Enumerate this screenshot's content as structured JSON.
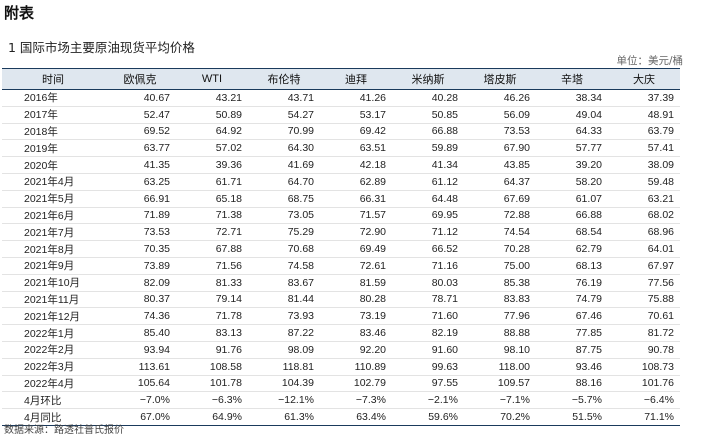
{
  "section_title": "附表",
  "table_title": "1  国际市场主要原油现货平均价格",
  "unit": "单位：美元/桶",
  "columns": [
    "时间",
    "欧佩克",
    "WTI",
    "布伦特",
    "迪拜",
    "米纳斯",
    "塔皮斯",
    "辛塔",
    "大庆"
  ],
  "rows": [
    [
      "2016年",
      "40.67",
      "43.21",
      "43.71",
      "41.26",
      "40.28",
      "46.26",
      "38.34",
      "37.39"
    ],
    [
      "2017年",
      "52.47",
      "50.89",
      "54.27",
      "53.17",
      "50.85",
      "56.09",
      "49.04",
      "48.91"
    ],
    [
      "2018年",
      "69.52",
      "64.92",
      "70.99",
      "69.42",
      "66.88",
      "73.53",
      "64.33",
      "63.79"
    ],
    [
      "2019年",
      "63.77",
      "57.02",
      "64.30",
      "63.51",
      "59.89",
      "67.90",
      "57.77",
      "57.41"
    ],
    [
      "2020年",
      "41.35",
      "39.36",
      "41.69",
      "42.18",
      "41.34",
      "43.85",
      "39.20",
      "38.09"
    ],
    [
      "2021年4月",
      "63.25",
      "61.71",
      "64.70",
      "62.89",
      "61.12",
      "64.37",
      "58.20",
      "59.48"
    ],
    [
      "2021年5月",
      "66.91",
      "65.18",
      "68.75",
      "66.31",
      "64.48",
      "67.69",
      "61.07",
      "63.21"
    ],
    [
      "2021年6月",
      "71.89",
      "71.38",
      "73.05",
      "71.57",
      "69.95",
      "72.88",
      "66.88",
      "68.02"
    ],
    [
      "2021年7月",
      "73.53",
      "72.71",
      "75.29",
      "72.90",
      "71.12",
      "74.54",
      "68.54",
      "68.96"
    ],
    [
      "2021年8月",
      "70.35",
      "67.88",
      "70.68",
      "69.49",
      "66.52",
      "70.28",
      "62.79",
      "64.01"
    ],
    [
      "2021年9月",
      "73.89",
      "71.56",
      "74.58",
      "72.61",
      "71.16",
      "75.00",
      "68.13",
      "67.97"
    ],
    [
      "2021年10月",
      "82.09",
      "81.33",
      "83.67",
      "81.59",
      "80.03",
      "85.38",
      "76.19",
      "77.56"
    ],
    [
      "2021年11月",
      "80.37",
      "79.14",
      "81.44",
      "80.28",
      "78.71",
      "83.83",
      "74.79",
      "75.88"
    ],
    [
      "2021年12月",
      "74.36",
      "71.78",
      "73.93",
      "73.19",
      "71.60",
      "77.96",
      "67.46",
      "70.61"
    ],
    [
      "2022年1月",
      "85.40",
      "83.13",
      "87.22",
      "83.46",
      "82.19",
      "88.88",
      "77.85",
      "81.72"
    ],
    [
      "2022年2月",
      "93.94",
      "91.76",
      "98.09",
      "92.20",
      "91.60",
      "98.10",
      "87.75",
      "90.78"
    ],
    [
      "2022年3月",
      "113.61",
      "108.58",
      "118.81",
      "110.89",
      "99.63",
      "118.00",
      "93.46",
      "108.73"
    ],
    [
      "2022年4月",
      "105.64",
      "101.78",
      "104.39",
      "102.79",
      "97.55",
      "109.57",
      "88.16",
      "101.76"
    ],
    [
      "4月环比",
      "−7.0%",
      "−6.3%",
      "−12.1%",
      "−7.3%",
      "−2.1%",
      "−7.1%",
      "−5.7%",
      "−6.4%"
    ],
    [
      "4月同比",
      "67.0%",
      "64.9%",
      "61.3%",
      "63.4%",
      "59.6%",
      "70.2%",
      "51.5%",
      "71.1%"
    ]
  ],
  "source": "数据来源：路透社普氏报价"
}
